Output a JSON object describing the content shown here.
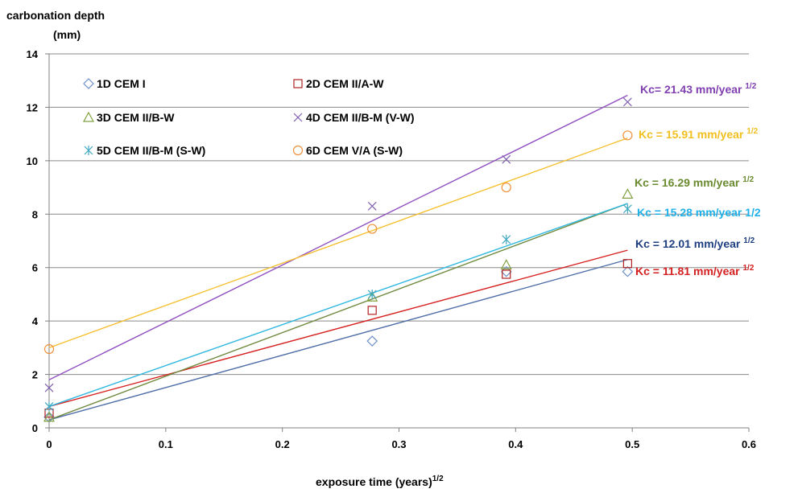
{
  "chart_data": {
    "type": "scatter",
    "ylabel_line1": "carbonation depth",
    "ylabel_line2": "(mm)",
    "xlabel_main": "exposure time (years)",
    "xlabel_sup": "1/2",
    "xlim": [
      0,
      0.6
    ],
    "ylim": [
      0,
      14
    ],
    "x_ticks": [
      "0",
      "0.1",
      "0.2",
      "0.3",
      "0.4",
      "0.5",
      "0.6"
    ],
    "y_ticks": [
      "0",
      "2",
      "4",
      "6",
      "8",
      "10",
      "12",
      "14"
    ],
    "grid": "horizontal",
    "legend_position": "top-left",
    "series": [
      {
        "name": "1D CEM I",
        "marker": "diamond",
        "color": "#6f8fc8",
        "x": [
          0,
          0.277,
          0.392,
          0.496
        ],
        "y": [
          0.4,
          3.25,
          5.85,
          5.85
        ],
        "fit": {
          "x": [
            0,
            0.496
          ],
          "y": [
            0.3,
            6.3
          ],
          "color": "#4f6fa8"
        }
      },
      {
        "name": "2D CEM II/A-W",
        "marker": "square",
        "color": "#b22222",
        "x": [
          0,
          0.277,
          0.392,
          0.496
        ],
        "y": [
          0.55,
          4.4,
          5.75,
          6.15
        ],
        "fit": {
          "x": [
            0,
            0.496
          ],
          "y": [
            0.8,
            6.65
          ],
          "color": "#d62020"
        }
      },
      {
        "name": "3D CEM II/B-W",
        "marker": "triangle",
        "color": "#80a040",
        "x": [
          0,
          0.277,
          0.392,
          0.496
        ],
        "y": [
          0.4,
          4.9,
          6.1,
          8.75
        ],
        "fit": {
          "x": [
            0,
            0.496
          ],
          "y": [
            0.3,
            8.4
          ],
          "color": "#708a40"
        }
      },
      {
        "name": "4D CEM II/B-M (V-W)",
        "marker": "x",
        "color": "#8060b0",
        "x": [
          0,
          0.277,
          0.392,
          0.496
        ],
        "y": [
          1.5,
          8.3,
          10.05,
          12.2
        ],
        "fit": {
          "x": [
            0,
            0.496
          ],
          "y": [
            1.8,
            12.45
          ],
          "color": "#9050c0"
        }
      },
      {
        "name": "5D CEM II/B-M (S-W)",
        "marker": "asterisk",
        "color": "#40a8c0",
        "x": [
          0,
          0.277,
          0.392,
          0.496
        ],
        "y": [
          0.8,
          5.0,
          7.05,
          8.2
        ],
        "fit": {
          "x": [
            0,
            0.496
          ],
          "y": [
            0.8,
            8.4
          ],
          "color": "#30b8e0"
        }
      },
      {
        "name": "6D CEM V/A (S-W)",
        "marker": "circle",
        "color": "#f0903a",
        "x": [
          0,
          0.277,
          0.392,
          0.496
        ],
        "y": [
          2.95,
          7.45,
          9.0,
          10.95
        ],
        "fit": {
          "x": [
            0,
            0.496
          ],
          "y": [
            3.0,
            10.85
          ],
          "color": "#f5c030"
        }
      }
    ],
    "annotations": [
      {
        "main": "Kc= 21.43 mm/year ",
        "sup": "1/2",
        "color": "#8040b0"
      },
      {
        "main": "Kc = 15.91 mm/year ",
        "sup": "1/2",
        "color": "#f0c020"
      },
      {
        "main": "Kc = 16.29 mm/year ",
        "sup": "1/2",
        "color": "#6a8a30"
      },
      {
        "main": "Kc = 15.28 mm/year 1/2",
        "sup": "",
        "color": "#20b0e8"
      },
      {
        "main": "Kc = 12.01 mm/year ",
        "sup": "1/2",
        "color": "#1f3f80"
      },
      {
        "main": "Kc = 11.81 mm/year ",
        "sup": "1/2",
        "color": "#d42020"
      }
    ]
  }
}
